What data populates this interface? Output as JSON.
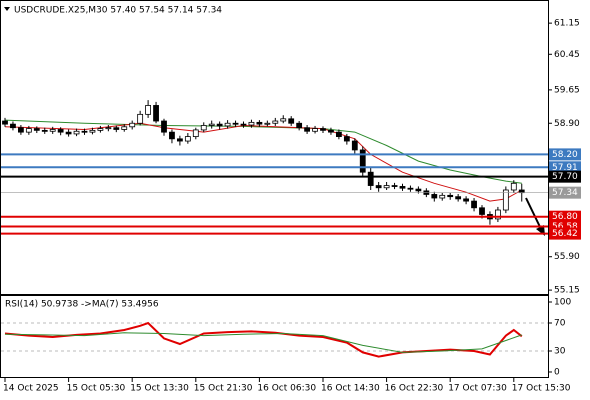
{
  "chart_data": {
    "type": "candlestick",
    "title": "USDCRUDE.X25,M30  57.40 57.54 57.14 57.34",
    "up_color": "#ffffff",
    "down_color": "#000000",
    "wick_color": "#000000",
    "open": [
      58.95,
      58.88,
      58.8,
      58.7,
      58.78,
      58.74,
      58.72,
      58.76,
      58.7,
      58.66,
      58.72,
      58.7,
      58.74,
      58.78,
      58.8,
      58.76,
      58.82,
      58.9,
      59.1,
      59.3,
      58.95,
      58.7,
      58.55,
      58.5,
      58.6,
      58.75,
      58.85,
      58.88,
      58.84,
      58.9,
      58.88,
      58.86,
      58.92,
      58.88,
      58.9,
      58.95,
      59.0,
      58.9,
      58.8,
      58.72,
      58.78,
      58.74,
      58.7,
      58.6,
      58.5,
      58.3,
      57.8,
      57.5,
      57.45,
      57.5,
      57.48,
      57.44,
      57.42,
      57.38,
      57.3,
      57.22,
      57.28,
      57.25,
      57.2,
      57.15,
      57.0,
      56.85,
      56.75,
      56.95,
      57.4,
      57.4
    ],
    "high": [
      59.02,
      58.94,
      58.86,
      58.84,
      58.83,
      58.8,
      58.82,
      58.81,
      58.76,
      58.78,
      58.78,
      58.8,
      58.84,
      58.86,
      58.85,
      58.88,
      58.96,
      59.18,
      59.42,
      59.38,
      59.0,
      58.76,
      58.62,
      58.68,
      58.8,
      58.92,
      58.96,
      58.94,
      58.97,
      58.96,
      58.94,
      58.98,
      58.97,
      58.96,
      59.02,
      59.08,
      59.06,
      58.95,
      58.86,
      58.84,
      58.83,
      58.8,
      58.76,
      58.66,
      58.56,
      58.38,
      57.9,
      57.58,
      57.58,
      57.56,
      57.54,
      57.5,
      57.48,
      57.44,
      57.36,
      57.34,
      57.34,
      57.31,
      57.26,
      57.22,
      57.06,
      56.92,
      57.02,
      57.48,
      57.62,
      57.54
    ],
    "low": [
      58.82,
      58.74,
      58.64,
      58.64,
      58.68,
      58.66,
      58.66,
      58.63,
      58.6,
      58.61,
      58.64,
      58.65,
      58.69,
      58.72,
      58.7,
      58.71,
      58.76,
      58.85,
      59.02,
      58.9,
      58.62,
      58.45,
      58.4,
      58.44,
      58.54,
      58.7,
      58.78,
      58.76,
      58.78,
      58.82,
      58.8,
      58.8,
      58.82,
      58.83,
      58.84,
      58.9,
      58.84,
      58.74,
      58.66,
      58.67,
      58.68,
      58.64,
      58.54,
      58.42,
      58.22,
      57.7,
      57.4,
      57.36,
      57.4,
      57.42,
      57.38,
      57.36,
      57.32,
      57.24,
      57.14,
      57.16,
      57.18,
      57.14,
      57.08,
      56.92,
      56.76,
      56.62,
      56.68,
      56.88,
      57.34,
      57.14
    ],
    "close": [
      58.88,
      58.8,
      58.7,
      58.78,
      58.74,
      58.72,
      58.76,
      58.7,
      58.66,
      58.72,
      58.7,
      58.74,
      58.78,
      58.8,
      58.76,
      58.82,
      58.9,
      59.1,
      59.3,
      58.95,
      58.7,
      58.55,
      58.5,
      58.6,
      58.75,
      58.85,
      58.88,
      58.84,
      58.9,
      58.88,
      58.86,
      58.92,
      58.88,
      58.9,
      58.95,
      59.0,
      58.9,
      58.8,
      58.72,
      58.78,
      58.74,
      58.7,
      58.6,
      58.5,
      58.3,
      57.8,
      57.5,
      57.45,
      57.5,
      57.48,
      57.44,
      57.42,
      57.38,
      57.3,
      57.22,
      57.28,
      57.25,
      57.2,
      57.15,
      57.0,
      56.85,
      56.75,
      56.95,
      57.4,
      57.55,
      57.34
    ],
    "ylim": [
      55.04,
      61.67
    ],
    "yticks": [
      61.15,
      60.45,
      59.65,
      {
        "value": 58.9,
        "label": "58.90"
      },
      {
        "value": 55.9,
        "label": "55.90"
      },
      55.15
    ],
    "xticks": [
      {
        "value": 0,
        "label": "14 Oct 2025"
      },
      {
        "value": 8,
        "label": "15 Oct 05:30"
      },
      {
        "value": 16,
        "label": "15 Oct 13:30"
      },
      {
        "value": 24,
        "label": "15 Oct 21:30"
      },
      {
        "value": 32,
        "label": "16 Oct 06:30"
      },
      {
        "value": 40,
        "label": "16 Oct 14:30"
      },
      {
        "value": 48,
        "label": "16 Oct 22:30"
      },
      {
        "value": 56,
        "label": "17 Oct 07:30"
      },
      {
        "value": 64,
        "label": "17 Oct 15:30"
      }
    ],
    "levels": [
      {
        "value": 58.2,
        "label": "58.20",
        "color": "#3d7ac0"
      },
      {
        "value": 57.91,
        "label": "57.91",
        "color": "#3d7ac0"
      },
      {
        "value": 57.7,
        "label": "57.70",
        "color": "#000000"
      },
      {
        "value": 57.34,
        "label": "57.34",
        "color": "#9a9a9a"
      },
      {
        "value": 56.8,
        "label": "56.80",
        "color": "#e00000"
      },
      {
        "value": 56.58,
        "label": "56.58",
        "color": "#e00000"
      },
      {
        "value": 56.42,
        "label": "56.42",
        "color": "#e00000"
      }
    ],
    "moving_averages": [
      {
        "color": "#2e8b2e",
        "x": [
          0,
          10,
          20,
          30,
          40,
          44,
          48,
          52,
          56,
          60,
          63,
          65
        ],
        "values": [
          58.97,
          58.9,
          58.85,
          58.83,
          58.78,
          58.7,
          58.4,
          58.05,
          57.85,
          57.7,
          57.6,
          57.55
        ]
      },
      {
        "color": "#d01010",
        "x": [
          0,
          10,
          17,
          20,
          25,
          30,
          40,
          44,
          46,
          50,
          54,
          58,
          61,
          63,
          65
        ],
        "values": [
          58.82,
          58.76,
          58.9,
          58.8,
          58.7,
          58.85,
          58.78,
          58.55,
          58.2,
          57.8,
          57.55,
          57.35,
          57.15,
          57.2,
          57.4
        ]
      }
    ],
    "rsi": {
      "title": "RSI(14) 50.9738  ->MA(7) 53.4956",
      "ylim": [
        -8.6,
        110
      ],
      "yticks": [
        100,
        70,
        30,
        0
      ],
      "guides": [
        70,
        30
      ],
      "series": [
        {
          "color": "#e00000",
          "x": [
            0,
            3,
            6,
            9,
            12,
            15,
            17,
            18,
            20,
            22,
            25,
            28,
            31,
            34,
            37,
            40,
            43,
            45,
            47,
            50,
            53,
            56,
            59,
            61,
            63,
            64,
            65
          ],
          "values": [
            55,
            52,
            50,
            53,
            55,
            60,
            66,
            70,
            48,
            40,
            55,
            57,
            58,
            56,
            52,
            50,
            42,
            28,
            22,
            28,
            30,
            32,
            30,
            25,
            52,
            60,
            51
          ]
        },
        {
          "color": "#2e8b2e",
          "x": [
            0,
            5,
            10,
            15,
            20,
            25,
            30,
            35,
            40,
            45,
            50,
            55,
            60,
            63,
            65
          ],
          "values": [
            54,
            53,
            52,
            56,
            55,
            52,
            54,
            55,
            52,
            38,
            28,
            30,
            33,
            45,
            53
          ]
        }
      ]
    }
  }
}
